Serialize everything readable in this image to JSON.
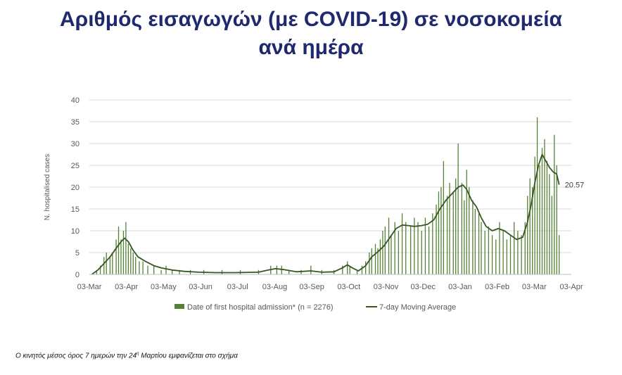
{
  "title": {
    "line1": "Αριθμός εισαγωγών (με COVID-19) σε νοσοκομεία",
    "line2": "ανά ημέρα"
  },
  "footnote": {
    "text": "Ο κινητός μέσος όρος 7 ημερών την 24",
    "sup": "η",
    "rest": " Μαρτίου εμφανίζεται στο σχήμα"
  },
  "colors": {
    "title": "#1f2a6e",
    "bar": "#548235",
    "line": "#375623",
    "grid": "#d9d9d9"
  },
  "chart_data": {
    "type": "bar",
    "ylabel": "N. hospitalised cases",
    "ylim": [
      0,
      40
    ],
    "yticks": [
      0,
      5,
      10,
      15,
      20,
      25,
      30,
      35,
      40
    ],
    "xlim": [
      "2020-03-03",
      "2021-04-03"
    ],
    "xticks": [
      "03-Mar",
      "03-Apr",
      "03-May",
      "03-Jun",
      "03-Jul",
      "03-Aug",
      "03-Sep",
      "03-Oct",
      "03-Nov",
      "03-Dec",
      "03-Jan",
      "03-Feb",
      "03-Mar",
      "03-Apr"
    ],
    "grid": true,
    "legend_position": "bottom",
    "last_value_label": "20.57",
    "series": [
      {
        "name": "Date of first hospital admission* (n = 2276)",
        "kind": "bar",
        "points": [
          [
            "2020-03-09",
            1
          ],
          [
            "2020-03-12",
            2
          ],
          [
            "2020-03-15",
            4
          ],
          [
            "2020-03-17",
            5
          ],
          [
            "2020-03-20",
            4
          ],
          [
            "2020-03-22",
            5
          ],
          [
            "2020-03-25",
            8
          ],
          [
            "2020-03-27",
            11
          ],
          [
            "2020-03-29",
            8
          ],
          [
            "2020-03-31",
            10
          ],
          [
            "2020-04-02",
            12
          ],
          [
            "2020-04-04",
            7
          ],
          [
            "2020-04-06",
            6
          ],
          [
            "2020-04-08",
            5
          ],
          [
            "2020-04-10",
            4
          ],
          [
            "2020-04-13",
            3
          ],
          [
            "2020-04-16",
            3
          ],
          [
            "2020-04-20",
            2
          ],
          [
            "2020-04-25",
            2
          ],
          [
            "2020-05-01",
            1
          ],
          [
            "2020-05-05",
            2
          ],
          [
            "2020-05-10",
            1
          ],
          [
            "2020-05-16",
            1
          ],
          [
            "2020-05-25",
            1
          ],
          [
            "2020-06-05",
            1
          ],
          [
            "2020-06-20",
            1
          ],
          [
            "2020-07-05",
            1
          ],
          [
            "2020-07-20",
            1
          ],
          [
            "2020-07-30",
            2
          ],
          [
            "2020-08-04",
            2
          ],
          [
            "2020-08-08",
            2
          ],
          [
            "2020-08-14",
            1
          ],
          [
            "2020-08-24",
            1
          ],
          [
            "2020-09-01",
            2
          ],
          [
            "2020-09-10",
            1
          ],
          [
            "2020-09-20",
            1
          ],
          [
            "2020-09-27",
            2
          ],
          [
            "2020-10-01",
            3
          ],
          [
            "2020-10-03",
            2
          ],
          [
            "2020-10-09",
            1
          ],
          [
            "2020-10-13",
            2
          ],
          [
            "2020-10-16",
            3
          ],
          [
            "2020-10-19",
            5
          ],
          [
            "2020-10-21",
            6
          ],
          [
            "2020-10-24",
            7
          ],
          [
            "2020-10-26",
            6
          ],
          [
            "2020-10-28",
            8
          ],
          [
            "2020-10-30",
            10
          ],
          [
            "2020-11-01",
            11
          ],
          [
            "2020-11-04",
            13
          ],
          [
            "2020-11-06",
            9
          ],
          [
            "2020-11-09",
            12
          ],
          [
            "2020-11-12",
            10
          ],
          [
            "2020-11-15",
            14
          ],
          [
            "2020-11-18",
            12
          ],
          [
            "2020-11-22",
            11
          ],
          [
            "2020-11-25",
            13
          ],
          [
            "2020-11-28",
            12
          ],
          [
            "2020-12-01",
            10
          ],
          [
            "2020-12-04",
            13
          ],
          [
            "2020-12-07",
            11
          ],
          [
            "2020-12-10",
            14
          ],
          [
            "2020-12-13",
            16
          ],
          [
            "2020-12-15",
            19
          ],
          [
            "2020-12-17",
            20
          ],
          [
            "2020-12-19",
            26
          ],
          [
            "2020-12-22",
            18
          ],
          [
            "2020-12-24",
            21
          ],
          [
            "2020-12-27",
            19
          ],
          [
            "2020-12-29",
            22
          ],
          [
            "2020-12-31",
            30
          ],
          [
            "2021-01-03",
            21
          ],
          [
            "2021-01-05",
            17
          ],
          [
            "2021-01-07",
            24
          ],
          [
            "2021-01-09",
            20
          ],
          [
            "2021-01-12",
            17
          ],
          [
            "2021-01-14",
            15
          ],
          [
            "2021-01-17",
            14
          ],
          [
            "2021-01-19",
            12
          ],
          [
            "2021-01-22",
            10
          ],
          [
            "2021-01-25",
            11
          ],
          [
            "2021-01-28",
            9
          ],
          [
            "2021-01-31",
            8
          ],
          [
            "2021-02-03",
            12
          ],
          [
            "2021-02-06",
            10
          ],
          [
            "2021-02-09",
            8
          ],
          [
            "2021-02-12",
            9
          ],
          [
            "2021-02-15",
            12
          ],
          [
            "2021-02-18",
            10
          ],
          [
            "2021-02-21",
            9
          ],
          [
            "2021-02-24",
            12
          ],
          [
            "2021-02-26",
            18
          ],
          [
            "2021-02-28",
            22
          ],
          [
            "2021-03-02",
            20
          ],
          [
            "2021-03-04",
            27
          ],
          [
            "2021-03-06",
            36
          ],
          [
            "2021-03-08",
            25
          ],
          [
            "2021-03-10",
            29
          ],
          [
            "2021-03-12",
            31
          ],
          [
            "2021-03-14",
            26
          ],
          [
            "2021-03-16",
            23
          ],
          [
            "2021-03-18",
            18
          ],
          [
            "2021-03-20",
            32
          ],
          [
            "2021-03-22",
            25
          ],
          [
            "2021-03-24",
            9
          ]
        ]
      },
      {
        "name": "7-day Moving Average",
        "kind": "line",
        "points": [
          [
            "2020-03-05",
            0
          ],
          [
            "2020-03-10",
            1
          ],
          [
            "2020-03-15",
            2.5
          ],
          [
            "2020-03-20",
            4
          ],
          [
            "2020-03-25",
            6
          ],
          [
            "2020-03-29",
            7.5
          ],
          [
            "2020-04-01",
            8.3
          ],
          [
            "2020-04-04",
            7.5
          ],
          [
            "2020-04-08",
            5.5
          ],
          [
            "2020-04-12",
            4
          ],
          [
            "2020-04-18",
            3
          ],
          [
            "2020-04-25",
            2
          ],
          [
            "2020-05-01",
            1.5
          ],
          [
            "2020-05-10",
            1
          ],
          [
            "2020-05-20",
            0.7
          ],
          [
            "2020-06-01",
            0.5
          ],
          [
            "2020-06-15",
            0.4
          ],
          [
            "2020-07-01",
            0.4
          ],
          [
            "2020-07-20",
            0.5
          ],
          [
            "2020-07-28",
            1
          ],
          [
            "2020-08-03",
            1.3
          ],
          [
            "2020-08-10",
            1.1
          ],
          [
            "2020-08-20",
            0.6
          ],
          [
            "2020-09-01",
            0.8
          ],
          [
            "2020-09-10",
            0.5
          ],
          [
            "2020-09-20",
            0.6
          ],
          [
            "2020-09-27",
            1.5
          ],
          [
            "2020-10-01",
            2.2
          ],
          [
            "2020-10-05",
            1.5
          ],
          [
            "2020-10-10",
            0.8
          ],
          [
            "2020-10-16",
            2
          ],
          [
            "2020-10-21",
            4
          ],
          [
            "2020-10-26",
            5.2
          ],
          [
            "2020-10-31",
            6.5
          ],
          [
            "2020-11-05",
            8.5
          ],
          [
            "2020-11-10",
            10.5
          ],
          [
            "2020-11-15",
            11.3
          ],
          [
            "2020-11-20",
            11.2
          ],
          [
            "2020-11-25",
            11
          ],
          [
            "2020-12-01",
            11.2
          ],
          [
            "2020-12-06",
            11.5
          ],
          [
            "2020-12-11",
            12.5
          ],
          [
            "2020-12-16",
            15
          ],
          [
            "2020-12-21",
            17
          ],
          [
            "2020-12-26",
            18.5
          ],
          [
            "2020-12-31",
            20
          ],
          [
            "2021-01-04",
            20.5
          ],
          [
            "2021-01-07",
            19.5
          ],
          [
            "2021-01-11",
            17
          ],
          [
            "2021-01-15",
            15.5
          ],
          [
            "2021-01-19",
            13
          ],
          [
            "2021-01-23",
            11
          ],
          [
            "2021-01-28",
            10
          ],
          [
            "2021-02-02",
            10.5
          ],
          [
            "2021-02-07",
            10
          ],
          [
            "2021-02-12",
            9
          ],
          [
            "2021-02-17",
            8
          ],
          [
            "2021-02-22",
            8.5
          ],
          [
            "2021-02-26",
            12
          ],
          [
            "2021-03-01",
            16
          ],
          [
            "2021-03-04",
            21
          ],
          [
            "2021-03-07",
            25
          ],
          [
            "2021-03-10",
            27.5
          ],
          [
            "2021-03-13",
            26
          ],
          [
            "2021-03-16",
            24.5
          ],
          [
            "2021-03-19",
            23.5
          ],
          [
            "2021-03-22",
            23
          ],
          [
            "2021-03-24",
            20.57
          ]
        ]
      }
    ]
  }
}
